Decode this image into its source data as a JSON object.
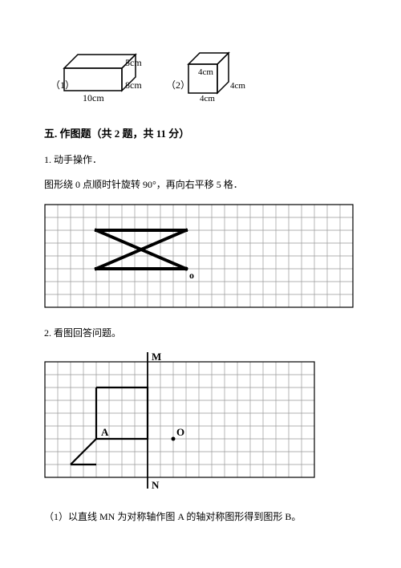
{
  "cuboid": {
    "num": "（1）",
    "w": "10cm",
    "d": "8cm",
    "h": "5cm"
  },
  "cube": {
    "num": "（2）",
    "side": "4cm"
  },
  "section": {
    "title": "五. 作图题（共 2 题，共 11 分）",
    "q1": "1. 动手操作．",
    "q1_instruction": "图形绕 0 点顺时针旋转 90°，再向右平移 5 格．",
    "q2": "2. 看图回答问题。",
    "q2_sub1": "（1）以直线 MN 为对称轴作图 A 的轴对称图形得到图形 B。"
  },
  "grid1": {
    "cols": 24,
    "rows": 8,
    "cell": 16,
    "label_o": "o",
    "color": "#000"
  },
  "grid2": {
    "cols": 21,
    "rows": 9,
    "cell": 16,
    "label_m": "M",
    "label_n": "N",
    "label_a": "A",
    "label_o": "O",
    "color": "#000"
  }
}
